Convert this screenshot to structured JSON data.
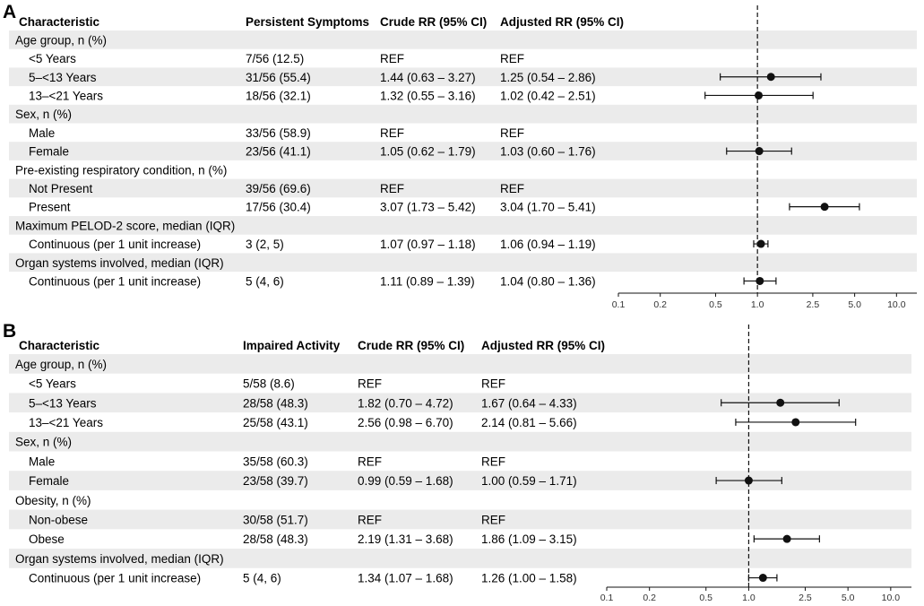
{
  "chart_data": [
    {
      "type": "forest",
      "panel_label": "A",
      "columns": [
        "Characteristic",
        "Persistent Symptoms",
        "Crude RR (95% CI)",
        "Adjusted RR (95% CI)"
      ],
      "x_scale": "log",
      "xlim": [
        0.1,
        14
      ],
      "reference_line": 1.0,
      "x_ticks": [
        0.1,
        0.2,
        0.5,
        1.0,
        2.5,
        5.0,
        10.0
      ],
      "x_tick_labels": [
        "0.1",
        "0.2",
        "0.5",
        "1.0",
        "2.5",
        "5.0",
        "10.0"
      ],
      "rows": [
        {
          "label": "Age group, n (%)",
          "group": true
        },
        {
          "label": "<5 Years",
          "count": "7/56 (12.5)",
          "crude": "REF",
          "adjusted": "REF"
        },
        {
          "label": "5–<13 Years",
          "count": "31/56 (55.4)",
          "crude": "1.44 (0.63 – 3.27)",
          "adjusted": "1.25 (0.54 – 2.86)",
          "est": 1.25,
          "lo": 0.54,
          "hi": 2.86
        },
        {
          "label": "13–<21 Years",
          "count": "18/56 (32.1)",
          "crude": "1.32 (0.55 – 3.16)",
          "adjusted": "1.02 (0.42 – 2.51)",
          "est": 1.02,
          "lo": 0.42,
          "hi": 2.51
        },
        {
          "label": "Sex, n (%)",
          "group": true
        },
        {
          "label": "Male",
          "count": "33/56 (58.9)",
          "crude": "REF",
          "adjusted": "REF"
        },
        {
          "label": "Female",
          "count": "23/56 (41.1)",
          "crude": "1.05 (0.62 – 1.79)",
          "adjusted": "1.03 (0.60 – 1.76)",
          "est": 1.03,
          "lo": 0.6,
          "hi": 1.76
        },
        {
          "label": "Pre-existing respiratory condition, n (%)",
          "group": true
        },
        {
          "label": "Not Present",
          "count": "39/56 (69.6)",
          "crude": "REF",
          "adjusted": "REF"
        },
        {
          "label": "Present",
          "count": "17/56 (30.4)",
          "crude": "3.07 (1.73 – 5.42)",
          "adjusted": "3.04 (1.70 – 5.41)",
          "est": 3.04,
          "lo": 1.7,
          "hi": 5.41
        },
        {
          "label": "Maximum PELOD-2 score, median (IQR)",
          "group": true
        },
        {
          "label": "Continuous (per 1 unit increase)",
          "count": "3 (2, 5)",
          "crude": "1.07 (0.97 – 1.18)",
          "adjusted": "1.06 (0.94 – 1.19)",
          "est": 1.06,
          "lo": 0.94,
          "hi": 1.19
        },
        {
          "label": "Organ systems involved, median (IQR)",
          "group": true
        },
        {
          "label": "Continuous (per 1 unit increase)",
          "count": "5 (4, 6)",
          "crude": "1.11 (0.89 – 1.39)",
          "adjusted": "1.04 (0.80 – 1.36)",
          "est": 1.04,
          "lo": 0.8,
          "hi": 1.36
        }
      ]
    },
    {
      "type": "forest",
      "panel_label": "B",
      "columns": [
        "Characteristic",
        "Impaired Activity",
        "Crude RR (95% CI)",
        "Adjusted RR (95% CI)"
      ],
      "x_scale": "log",
      "xlim": [
        0.1,
        14
      ],
      "reference_line": 1.0,
      "x_ticks": [
        0.1,
        0.2,
        0.5,
        1.0,
        2.5,
        5.0,
        10.0
      ],
      "x_tick_labels": [
        "0.1",
        "0.2",
        "0.5",
        "1.0",
        "2.5",
        "5.0",
        "10.0"
      ],
      "rows": [
        {
          "label": "Age group, n (%)",
          "group": true
        },
        {
          "label": "<5 Years",
          "count": "5/58 (8.6)",
          "crude": "REF",
          "adjusted": "REF"
        },
        {
          "label": "5–<13 Years",
          "count": "28/58 (48.3)",
          "crude": "1.82 (0.70 – 4.72)",
          "adjusted": "1.67 (0.64 – 4.33)",
          "est": 1.67,
          "lo": 0.64,
          "hi": 4.33
        },
        {
          "label": "13–<21 Years",
          "count": "25/58 (43.1)",
          "crude": "2.56 (0.98 – 6.70)",
          "adjusted": "2.14 (0.81 – 5.66)",
          "est": 2.14,
          "lo": 0.81,
          "hi": 5.66
        },
        {
          "label": "Sex, n (%)",
          "group": true
        },
        {
          "label": "Male",
          "count": "35/58 (60.3)",
          "crude": "REF",
          "adjusted": "REF"
        },
        {
          "label": "Female",
          "count": "23/58 (39.7)",
          "crude": "0.99 (0.59 – 1.68)",
          "adjusted": "1.00 (0.59 – 1.71)",
          "est": 1.0,
          "lo": 0.59,
          "hi": 1.71
        },
        {
          "label": "Obesity, n (%)",
          "group": true
        },
        {
          "label": "Non-obese",
          "count": "30/58 (51.7)",
          "crude": "REF",
          "adjusted": "REF"
        },
        {
          "label": "Obese",
          "count": "28/58 (48.3)",
          "crude": "2.19 (1.31 – 3.68)",
          "adjusted": "1.86 (1.09 – 3.15)",
          "est": 1.86,
          "lo": 1.09,
          "hi": 3.15
        },
        {
          "label": "Organ systems involved, median (IQR)",
          "group": true
        },
        {
          "label": "Continuous (per 1 unit increase)",
          "count": "5 (4, 6)",
          "crude": "1.34 (1.07 – 1.68)",
          "adjusted": "1.26 (1.00 – 1.58)",
          "est": 1.26,
          "lo": 1.0,
          "hi": 1.58
        }
      ]
    }
  ]
}
